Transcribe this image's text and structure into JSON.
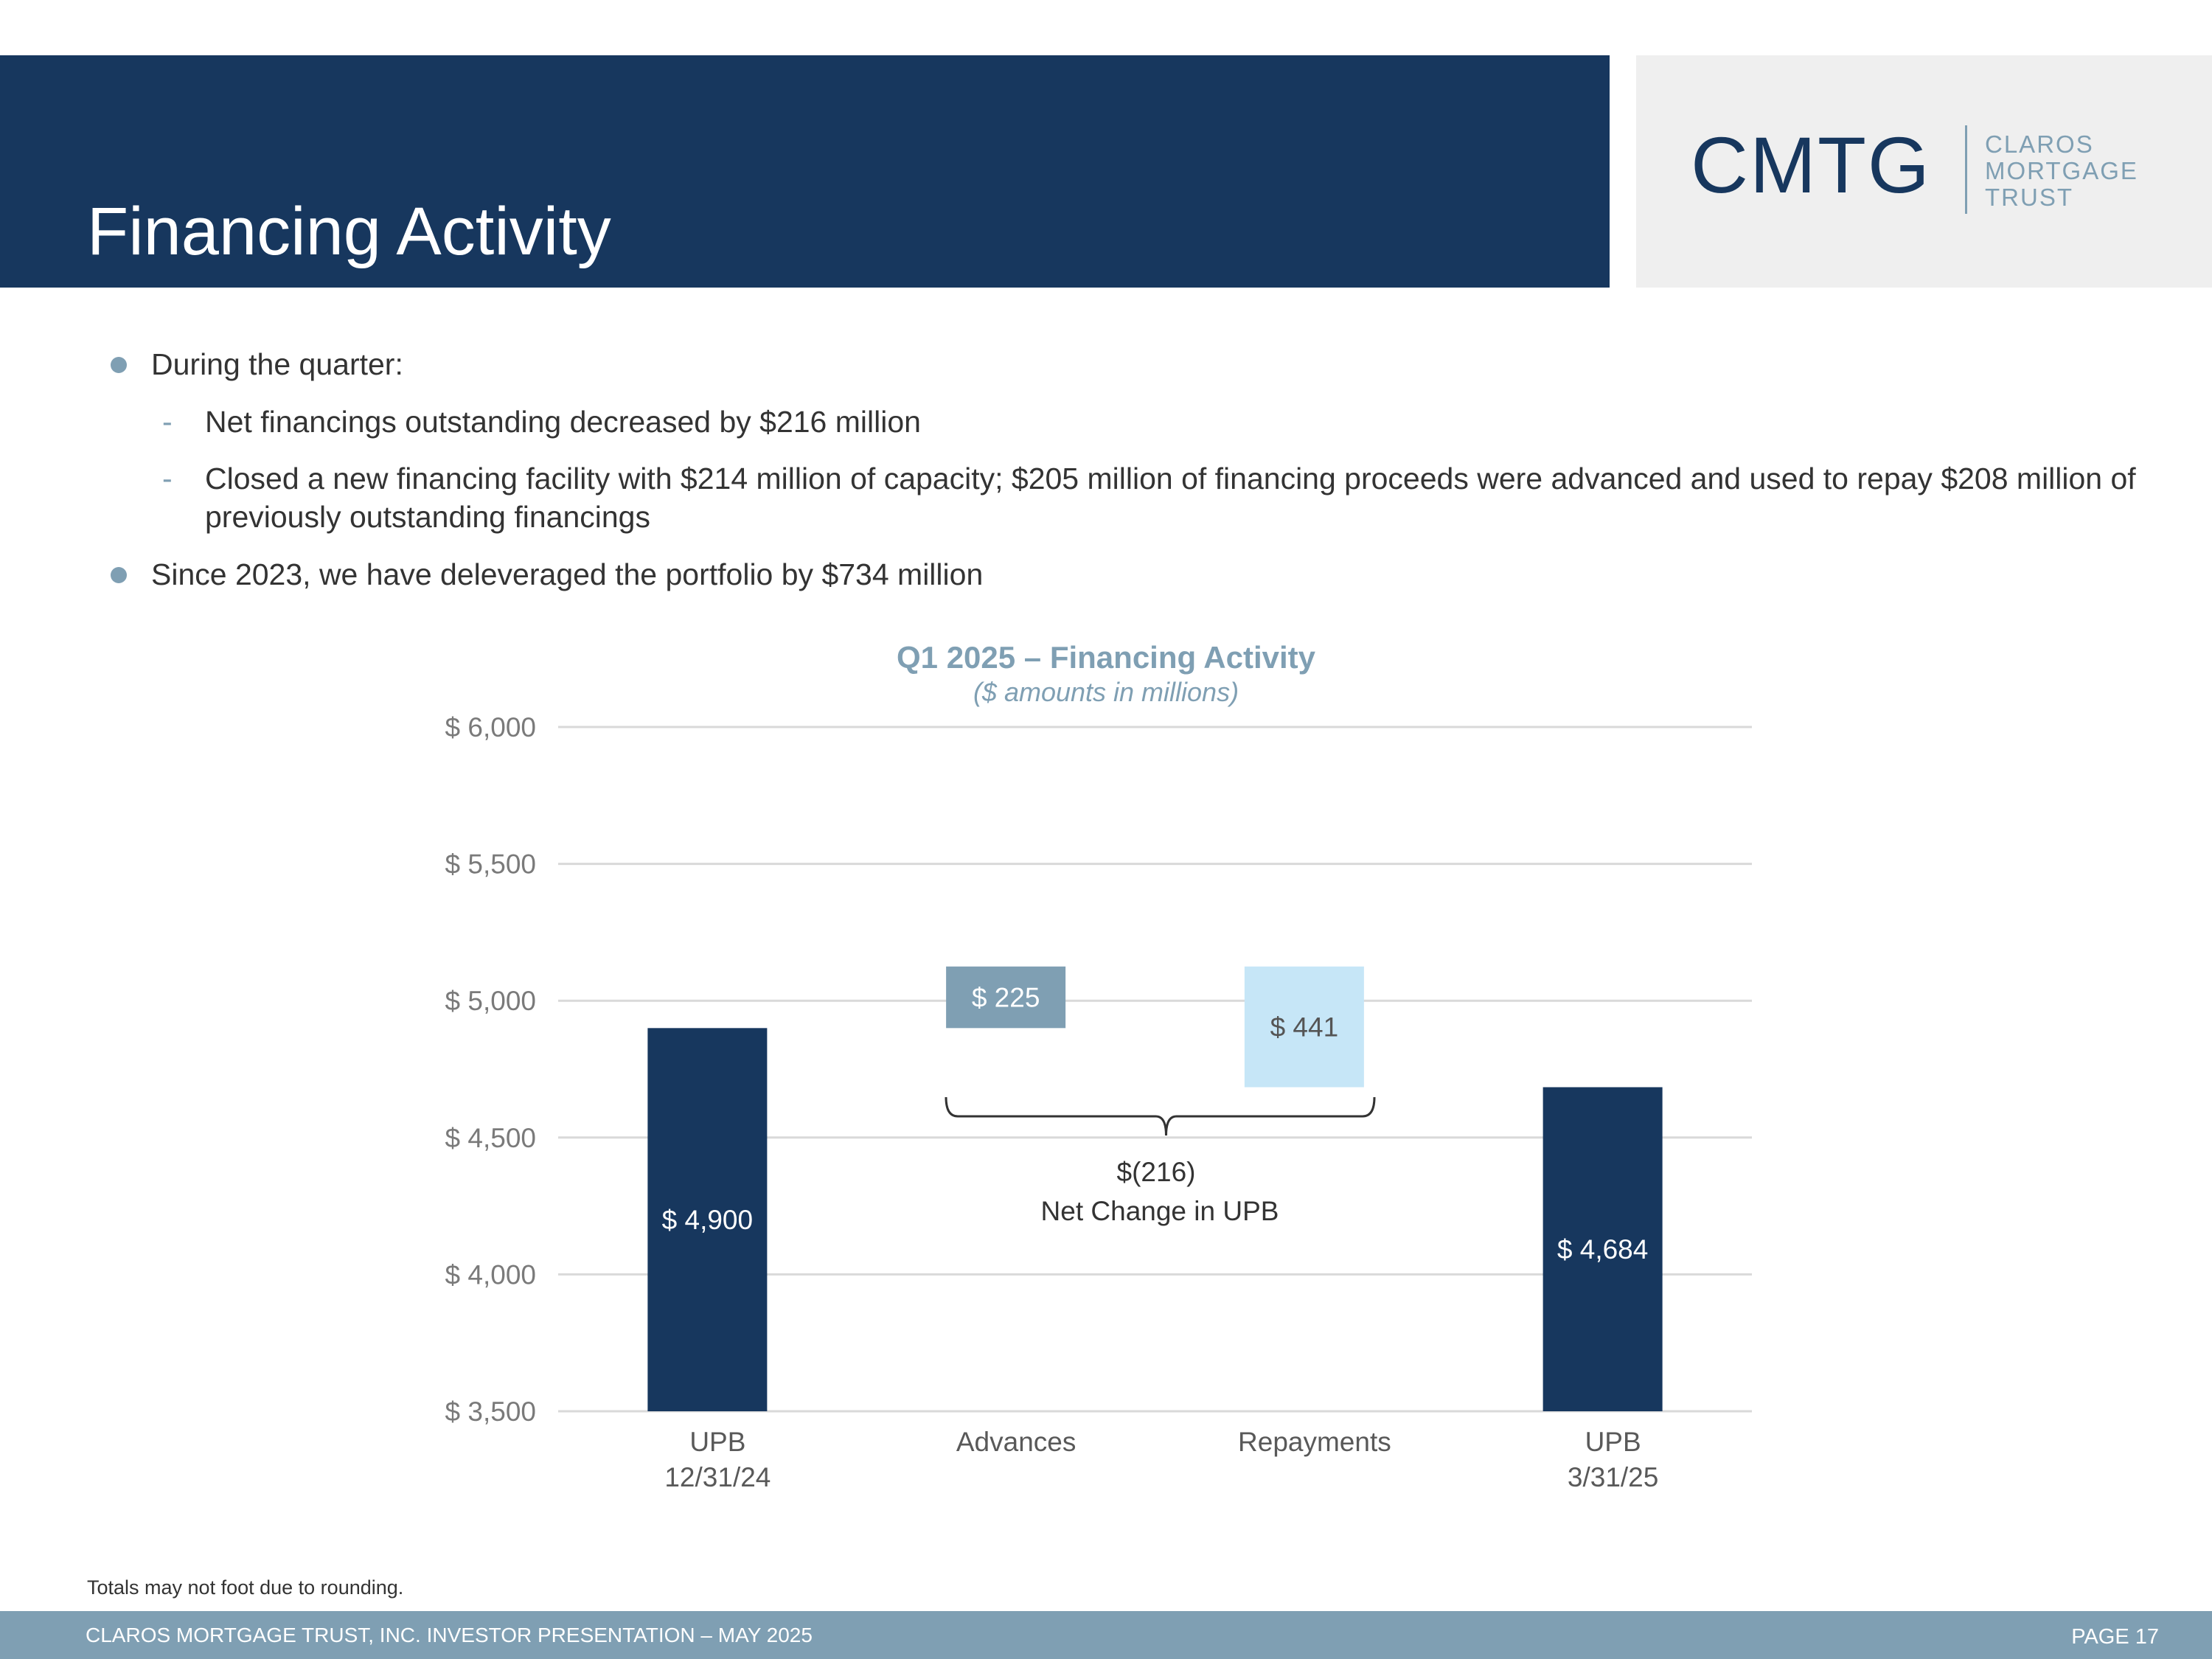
{
  "header": {
    "title": "Financing Activity"
  },
  "logo": {
    "mark": "CMTG",
    "words": [
      "CLAROS",
      "MORTGAGE",
      "TRUST"
    ]
  },
  "bullets": [
    {
      "text": "During the quarter:",
      "sub": [
        "Net financings outstanding decreased by $216 million",
        "Closed a new financing facility with $214 million of capacity; $205 million of financing proceeds were advanced and used to repay $208 million of previously outstanding financings"
      ]
    },
    {
      "text": "Since 2023, we have deleveraged the portfolio by $734 million",
      "sub": []
    }
  ],
  "chart_data": {
    "type": "bar",
    "subtype": "waterfall",
    "title": "Q1 2025 – Financing Activity",
    "subtitle": "($ amounts in millions)",
    "categories": [
      "UPB\n12/31/24",
      "Advances",
      "Repayments",
      "UPB\n3/31/25"
    ],
    "bars": [
      {
        "category": "UPB 12/31/24",
        "base": 3500,
        "top": 4900,
        "label": "$ 4,900",
        "color": "#17375e",
        "label_color": "#ffffff"
      },
      {
        "category": "Advances",
        "base": 4900,
        "top": 5125,
        "label": "$ 225",
        "color": "#7f9fb3",
        "label_color": "#ffffff"
      },
      {
        "category": "Repayments",
        "base": 4684,
        "top": 5125,
        "label": "$ 441",
        "color": "#c6e6f7",
        "label_color": "#555555"
      },
      {
        "category": "UPB 3/31/25",
        "base": 3500,
        "top": 4684,
        "label": "$ 4,684",
        "color": "#17375e",
        "label_color": "#ffffff"
      }
    ],
    "ylim": [
      3500,
      6000
    ],
    "yticks": [
      3500,
      4000,
      4500,
      5000,
      5500,
      6000
    ],
    "ytick_labels": [
      "$ 3,500",
      "$ 4,000",
      "$ 4,500",
      "$ 5,000",
      "$ 5,500",
      "$ 6,000"
    ],
    "grid": true,
    "annotation": {
      "value": "$(216)",
      "text": "Net Change in UPB",
      "spans": [
        "Advances",
        "Repayments"
      ]
    }
  },
  "footnote": "Totals may not foot due to rounding.",
  "footer": {
    "left": "CLAROS MORTGAGE TRUST, INC. INVESTOR PRESENTATION – MAY 2025",
    "right": "PAGE 17"
  }
}
